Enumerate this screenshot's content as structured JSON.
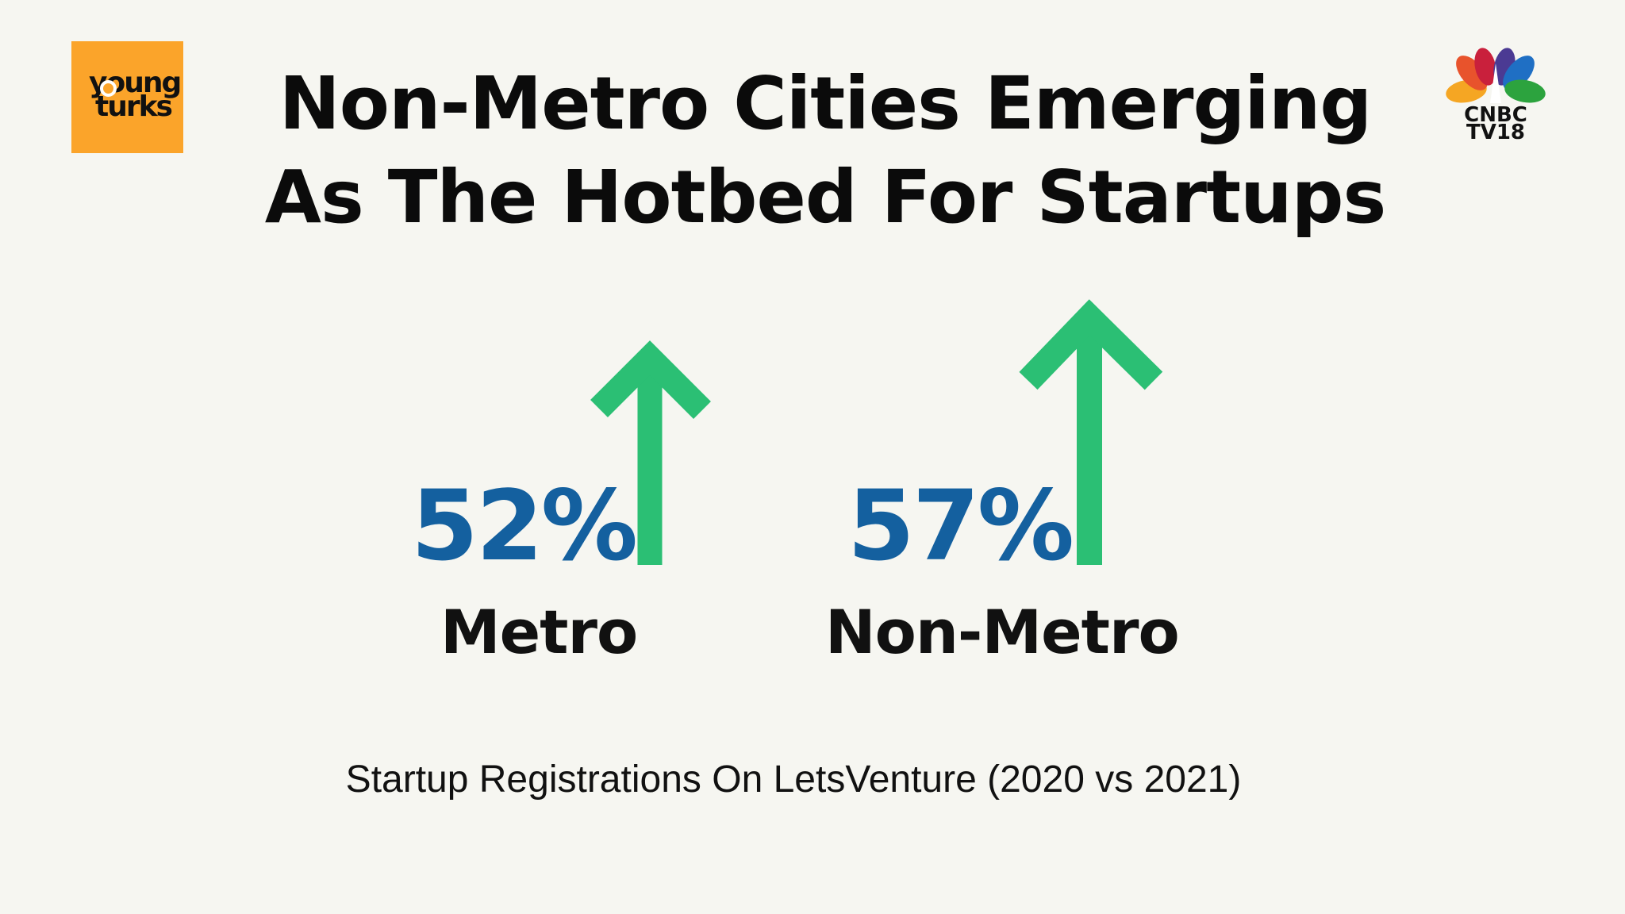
{
  "logo_left": {
    "line1": "young",
    "line2": "turks",
    "color": "#fba42a"
  },
  "logo_right": {
    "line1": "CNBC",
    "line2": "TV18"
  },
  "title": {
    "line1": "Non-Metro Cities Emerging",
    "line2": "As The Hotbed For Startups"
  },
  "stats": [
    {
      "value": "52%",
      "label": "Metro",
      "direction": "up"
    },
    {
      "value": "57%",
      "label": "Non-Metro",
      "direction": "up"
    }
  ],
  "caption": "Startup Registrations On LetsVenture (2020 vs 2021)",
  "colors": {
    "percent": "#14609f",
    "arrow": "#2bbf74",
    "background": "#f6f6f1"
  }
}
